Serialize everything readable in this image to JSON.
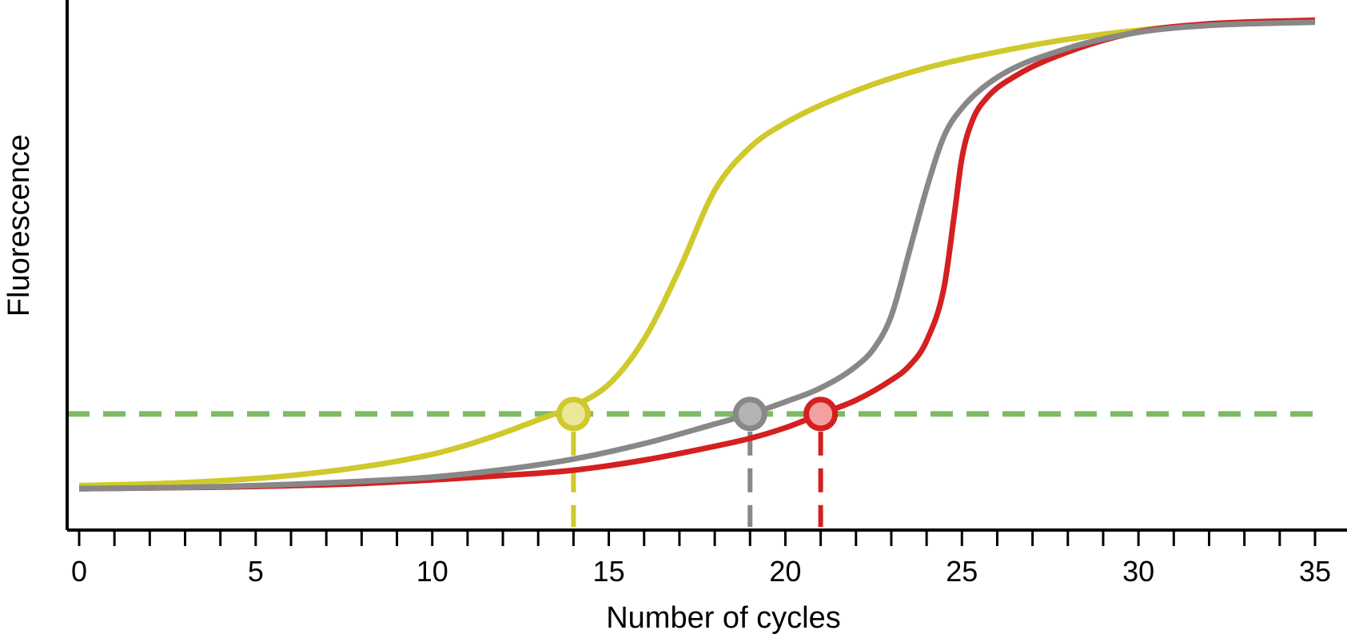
{
  "chart_data": {
    "type": "line",
    "xlabel": "Number of cycles",
    "ylabel": "Fluorescence",
    "xlim": [
      0,
      35
    ],
    "ylim": [
      0,
      1
    ],
    "x_ticks": [
      0,
      5,
      10,
      15,
      20,
      25,
      30,
      35
    ],
    "minor_tick_step": 1,
    "grid": false,
    "threshold": {
      "y": 0.219,
      "color": "#7dbb64",
      "style": "dashed"
    },
    "series": [
      {
        "color": "#cfc92b",
        "marker_fill": "#ebe69a",
        "ct": 14,
        "x": [
          0,
          2,
          4,
          6,
          8,
          10,
          11,
          12,
          13,
          14,
          15,
          16,
          17,
          18,
          19,
          20,
          22,
          24,
          26,
          28,
          30,
          32,
          35
        ],
        "y": [
          0.084,
          0.087,
          0.093,
          0.103,
          0.119,
          0.143,
          0.161,
          0.183,
          0.208,
          0.234,
          0.275,
          0.36,
          0.492,
          0.641,
          0.722,
          0.768,
          0.829,
          0.872,
          0.902,
          0.926,
          0.943,
          0.954,
          0.96
        ]
      },
      {
        "color": "#888888",
        "marker_fill": "#b3b3b3",
        "ct": 19,
        "x": [
          0,
          4,
          8,
          10,
          12,
          14,
          16,
          18,
          19,
          20,
          21,
          22,
          22.5,
          23,
          23.5,
          24,
          24.5,
          25,
          26,
          28,
          30,
          32,
          35
        ],
        "y": [
          0.078,
          0.082,
          0.092,
          0.1,
          0.114,
          0.134,
          0.163,
          0.2,
          0.219,
          0.242,
          0.268,
          0.309,
          0.342,
          0.404,
          0.523,
          0.644,
          0.744,
          0.796,
          0.854,
          0.909,
          0.939,
          0.952,
          0.958
        ]
      },
      {
        "color": "#d42020",
        "marker_fill": "#f2a0a0",
        "ct": 21,
        "x": [
          0,
          4,
          8,
          12,
          14,
          16,
          18,
          19,
          20,
          21,
          22,
          23,
          23.5,
          24,
          24.5,
          24.8,
          25,
          25.3,
          25.7,
          26.5,
          28,
          30,
          32,
          35
        ],
        "y": [
          0.078,
          0.081,
          0.088,
          0.103,
          0.113,
          0.132,
          0.158,
          0.173,
          0.193,
          0.219,
          0.245,
          0.283,
          0.309,
          0.357,
          0.46,
          0.603,
          0.702,
          0.773,
          0.815,
          0.856,
          0.902,
          0.94,
          0.955,
          0.962
        ]
      }
    ]
  }
}
